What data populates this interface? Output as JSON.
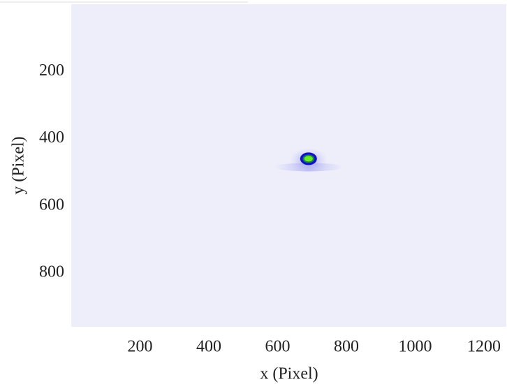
{
  "chart_data": {
    "type": "heatmap",
    "xlabel": "x (Pixel)",
    "ylabel": "y (Pixel)",
    "xlim": [
      0,
      1265
    ],
    "xticks": [
      200,
      400,
      600,
      800,
      1000,
      1200
    ],
    "ylim": [
      0,
      960
    ],
    "yticks": [
      200,
      400,
      600,
      800
    ],
    "y_inverted": true,
    "background_color": "#eeeefb",
    "spot": {
      "x": 690,
      "y": 460,
      "color": "#66ee22"
    }
  }
}
